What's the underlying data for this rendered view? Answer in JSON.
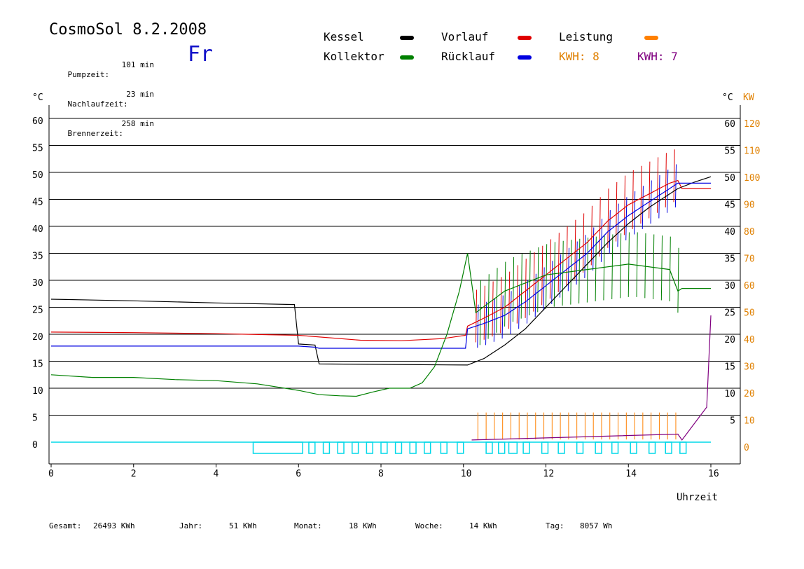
{
  "header": {
    "title": "CosmoSol 8.2.2008",
    "day": "Fr",
    "stats": [
      {
        "label": "Pumpzeit:",
        "value": "101 min"
      },
      {
        "label": "Nachlaufzeit:",
        "value": "23 min"
      },
      {
        "label": "Brennerzeit:",
        "value": "258 min"
      }
    ]
  },
  "legend": {
    "kessel": {
      "label": "Kessel",
      "color": "#000000"
    },
    "kollektor": {
      "label": "Kollektor",
      "color": "#008000"
    },
    "vorlauf": {
      "label": "Vorlauf",
      "color": "#e00000"
    },
    "ruecklauf": {
      "label": "Rücklauf",
      "color": "#0000e0"
    },
    "leistung": {
      "label": "Leistung",
      "color": "#ff8000"
    },
    "kwh1": "KWH: 8",
    "kwh2": "KWH: 7"
  },
  "footer": [
    {
      "label": "Gesamt:",
      "value": "26493 KWh"
    },
    {
      "label": "Jahr:",
      "value": "51 KWh"
    },
    {
      "label": "Monat:",
      "value": "18 KWh"
    },
    {
      "label": "Woche:",
      "value": "14 KWh"
    },
    {
      "label": "Tag:",
      "value": "8057 Wh"
    }
  ],
  "chart_data": {
    "type": "line",
    "xlabel": "Uhrzeit",
    "ylabel_left": "°C",
    "ylabel_right_temp": "°C",
    "ylabel_right_power": "KW",
    "xlim": [
      0,
      16.5
    ],
    "ylim": [
      -4,
      62
    ],
    "x_ticks": [
      0,
      2,
      4,
      6,
      8,
      10,
      12,
      14,
      16
    ],
    "y_ticks_left": [
      0,
      5,
      10,
      15,
      20,
      25,
      30,
      35,
      40,
      45,
      50,
      55,
      60
    ],
    "y_ticks_right_temp": [
      5,
      10,
      15,
      20,
      25,
      30,
      35,
      40,
      45,
      50,
      55,
      60
    ],
    "y_ticks_right_power": [
      0,
      10,
      20,
      30,
      40,
      50,
      60,
      70,
      80,
      90,
      100,
      110,
      120
    ],
    "grid": "horizontal",
    "series": [
      {
        "key": "kessel",
        "color": "#000000",
        "x": [
          0,
          2,
          4,
          5.9,
          6.0,
          6.4,
          6.5,
          10.1,
          10.5,
          11,
          11.5,
          12,
          12.5,
          13,
          13.5,
          14,
          14.5,
          15,
          15.2,
          15.6,
          16
        ],
        "y": [
          26.5,
          26.2,
          25.8,
          25.5,
          18.2,
          18.0,
          14.5,
          14.3,
          15.5,
          18,
          21,
          25,
          29,
          33,
          37,
          40.5,
          43.5,
          46,
          47,
          48.2,
          49.2
        ]
      },
      {
        "key": "vorlauf",
        "color": "#e00000",
        "x": [
          0,
          2,
          4,
          6,
          7.5,
          8.5,
          9.5,
          10.05,
          10.1,
          10.5,
          11,
          11.5,
          12,
          12.5,
          13,
          13.5,
          14,
          14.5,
          15,
          15.2,
          15.3,
          16
        ],
        "y": [
          20.4,
          20.3,
          20.1,
          19.8,
          18.9,
          18.8,
          19.2,
          19.8,
          21.5,
          23,
          25,
          28,
          31,
          34,
          37,
          41,
          44,
          46,
          48,
          48.5,
          47,
          47
        ]
      },
      {
        "key": "ruecklauf",
        "color": "#0000e0",
        "x": [
          0,
          2,
          4,
          6,
          6.4,
          6.5,
          8,
          10.05,
          10.1,
          10.5,
          11,
          11.5,
          12,
          12.5,
          13,
          13.5,
          14,
          14.5,
          15,
          15.2,
          15.3,
          16
        ],
        "y": [
          17.8,
          17.8,
          17.8,
          17.8,
          17.6,
          17.4,
          17.4,
          17.4,
          21,
          22,
          23.5,
          26,
          29,
          32,
          35,
          39,
          42,
          44.5,
          47,
          48,
          48,
          48
        ]
      },
      {
        "key": "kollektor",
        "color": "#008000",
        "x": [
          0,
          1,
          2,
          3,
          4,
          5,
          6,
          6.5,
          7,
          7.4,
          7.8,
          8.2,
          8.7,
          9.0,
          9.3,
          9.6,
          9.9,
          10.1,
          10.3,
          11,
          12,
          13,
          14,
          15,
          15.2,
          15.3,
          16
        ],
        "y": [
          12.5,
          12.0,
          12.0,
          11.6,
          11.4,
          10.8,
          9.6,
          8.8,
          8.6,
          8.5,
          9.3,
          10.0,
          10.0,
          11.0,
          14.0,
          20.0,
          28.0,
          35.0,
          24.0,
          28.0,
          31.0,
          32.0,
          33.0,
          32.0,
          28.0,
          28.5,
          28.5
        ]
      },
      {
        "key": "kwh2",
        "color": "#800080",
        "x": [
          10.2,
          15.2,
          15.3,
          15.9,
          16.0
        ],
        "y": [
          0.4,
          1.5,
          0.4,
          6.5,
          23.5
        ]
      }
    ],
    "pump_intervals": [
      [
        4.9,
        6.1
      ],
      [
        6.25,
        6.4
      ],
      [
        6.6,
        6.75
      ],
      [
        6.95,
        7.1
      ],
      [
        7.3,
        7.45
      ],
      [
        7.65,
        7.8
      ],
      [
        8.0,
        8.15
      ],
      [
        8.35,
        8.5
      ],
      [
        8.7,
        8.85
      ],
      [
        9.05,
        9.2
      ],
      [
        9.45,
        9.6
      ],
      [
        9.85,
        10.0
      ],
      [
        10.55,
        10.7
      ],
      [
        10.85,
        11.0
      ],
      [
        11.1,
        11.3
      ],
      [
        11.45,
        11.6
      ],
      [
        11.9,
        12.05
      ],
      [
        12.3,
        12.45
      ],
      [
        12.75,
        12.9
      ],
      [
        13.2,
        13.35
      ],
      [
        13.6,
        13.75
      ],
      [
        14.05,
        14.2
      ],
      [
        14.5,
        14.65
      ],
      [
        14.9,
        15.05
      ],
      [
        15.25,
        15.4
      ]
    ],
    "pump_level": 0
  }
}
